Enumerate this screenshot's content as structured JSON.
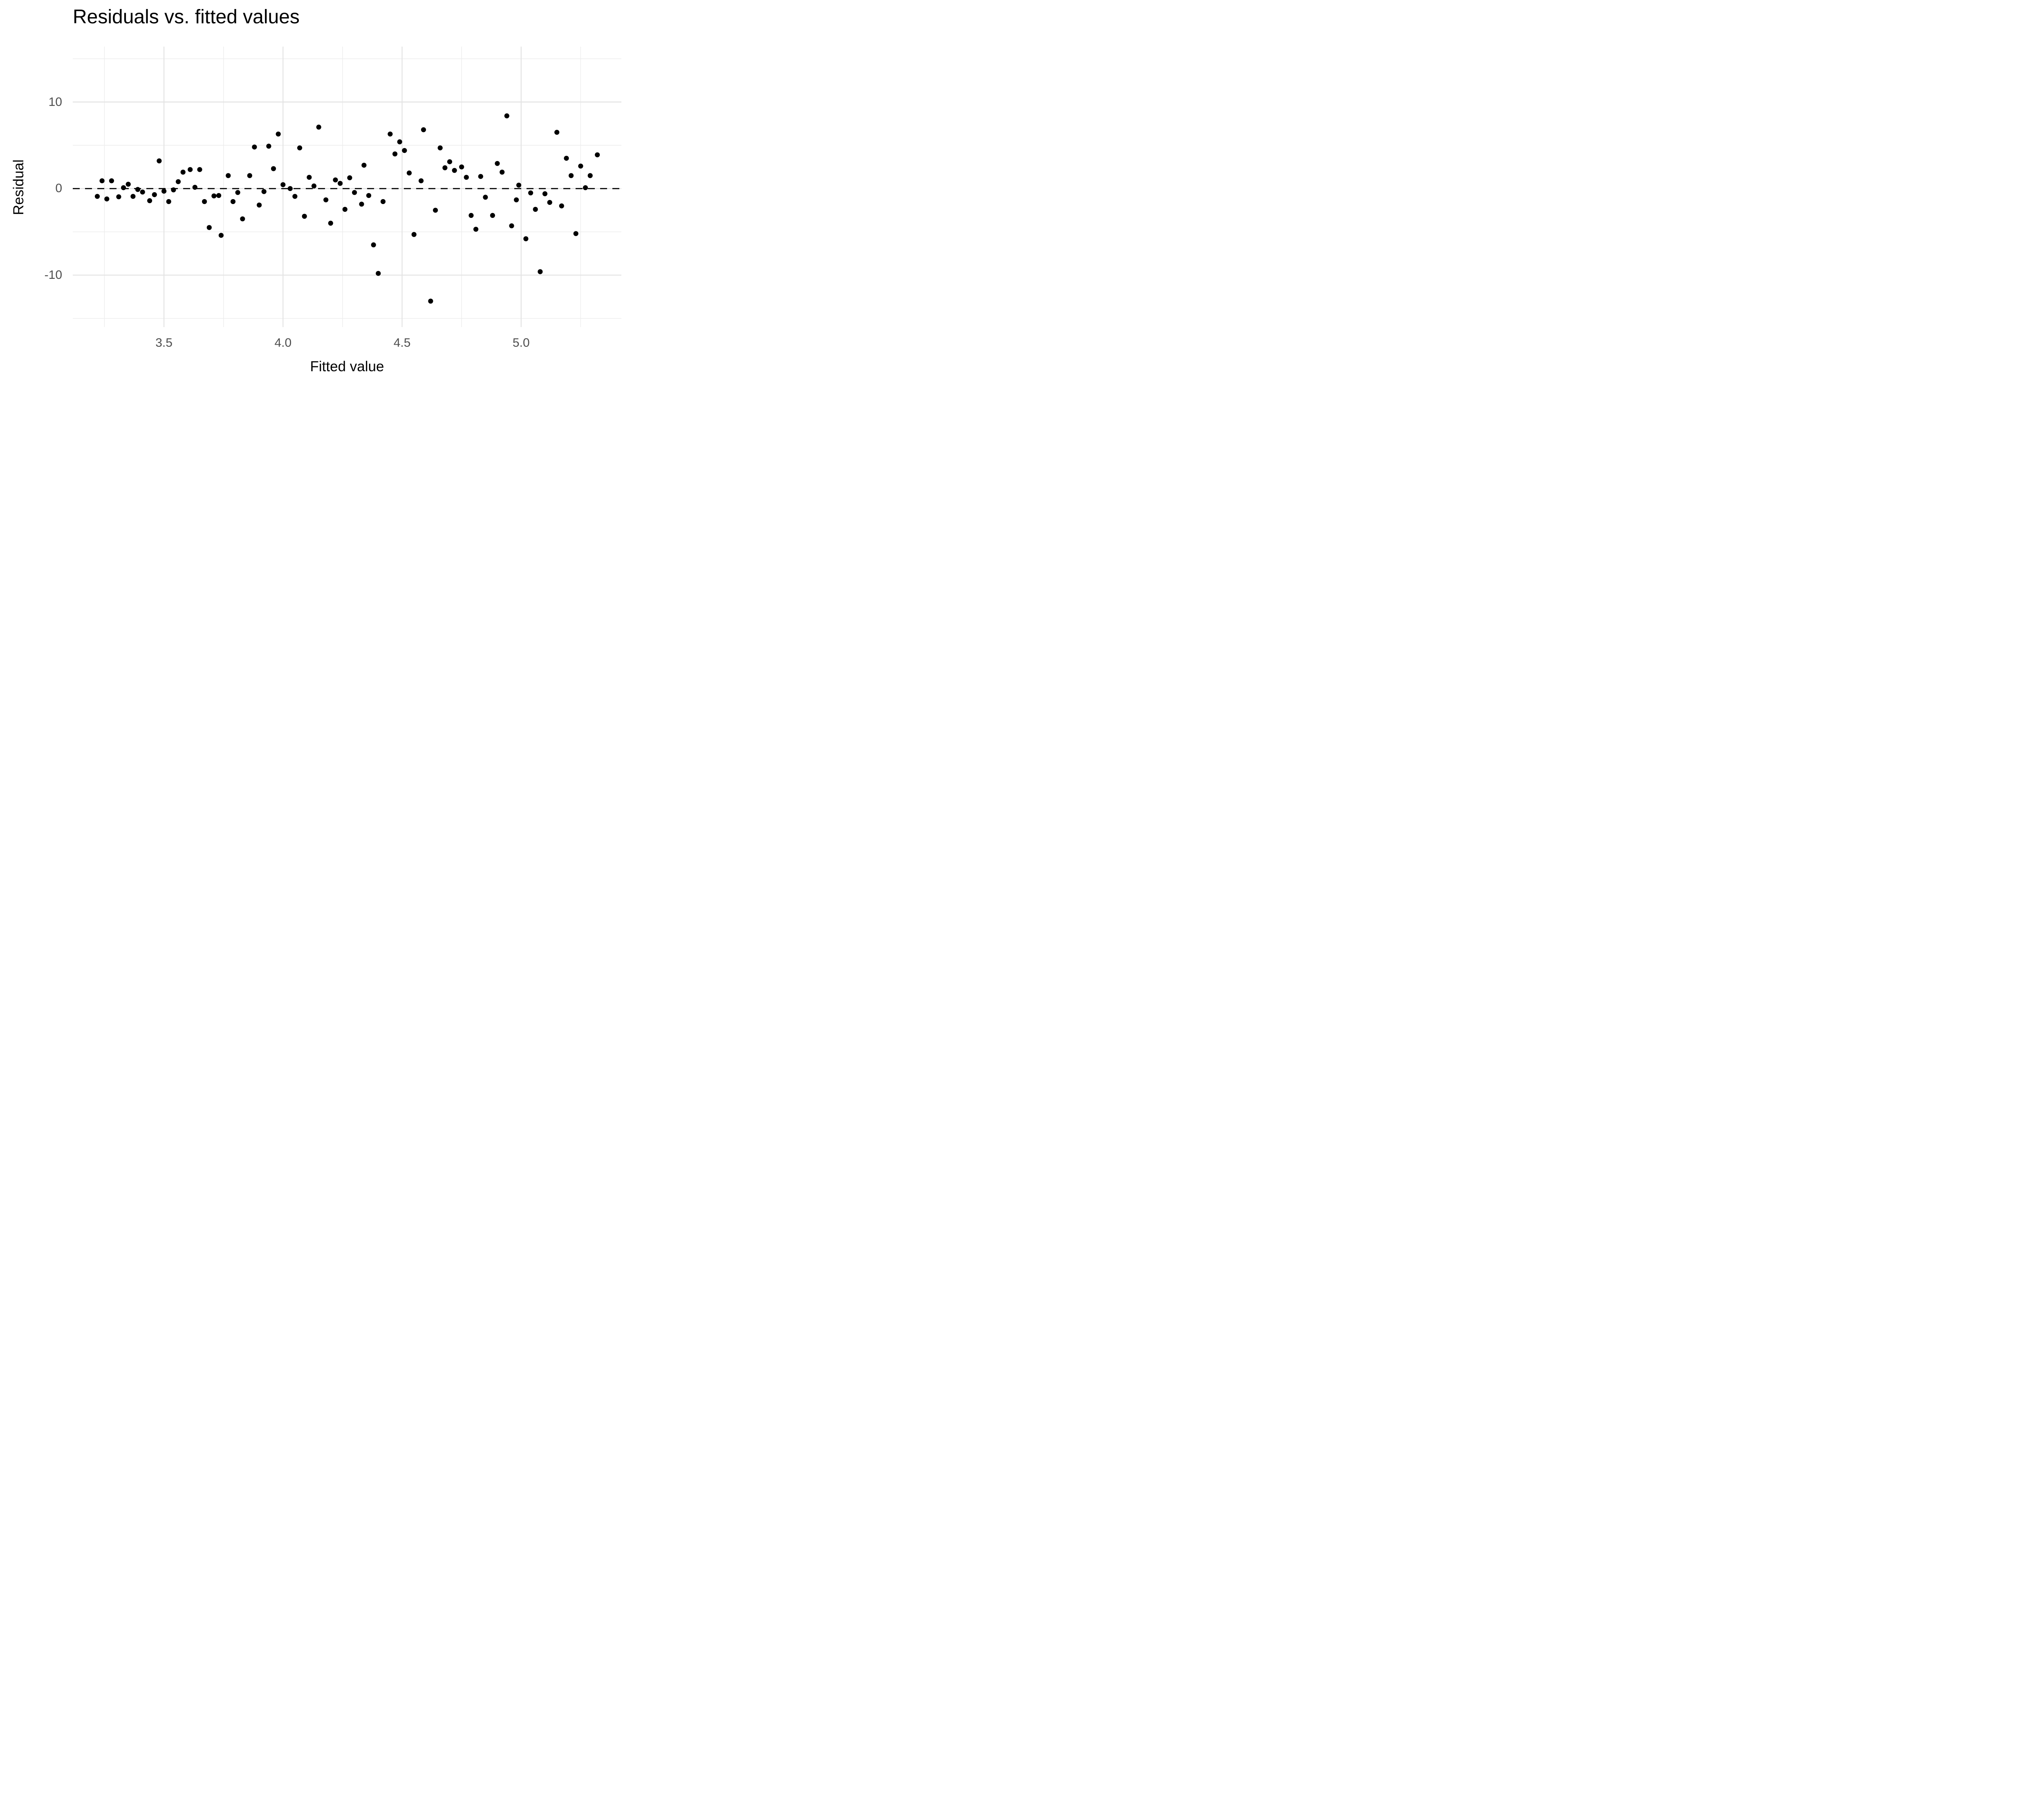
{
  "title": "Residuals vs. fitted values",
  "colors": {
    "background": "#ffffff",
    "point": "#000000",
    "grid_major": "#e4e4e4",
    "grid_minor": "#ececec",
    "zero_line": "#000000",
    "tick_text": "#4d4d4d",
    "title_text": "#000000"
  },
  "chart_data": {
    "type": "scatter",
    "title": "Residuals vs. fitted values",
    "xlabel": "Fitted value",
    "ylabel": "Residual",
    "x_ticks": [
      3.5,
      4.0,
      4.5,
      5.0
    ],
    "x_tick_labels": [
      "3.5",
      "4.0",
      "4.5",
      "5.0"
    ],
    "x_minor_ticks": [
      3.25,
      3.75,
      4.25,
      4.75,
      5.25
    ],
    "y_ticks": [
      10,
      0,
      -10
    ],
    "y_tick_labels": [
      "10",
      "0",
      "-10"
    ],
    "y_minor_ticks": [
      15,
      5,
      -5,
      -15
    ],
    "xlim": [
      3.117,
      5.421
    ],
    "ylim": [
      -16.0,
      16.4
    ],
    "grid": true,
    "legend": "none",
    "zero_line": {
      "y": 0,
      "style": "dashed",
      "color": "#000000"
    },
    "points": [
      [
        3.22,
        -0.9
      ],
      [
        3.24,
        0.9
      ],
      [
        3.26,
        -1.2
      ],
      [
        3.28,
        0.9
      ],
      [
        3.31,
        -0.95
      ],
      [
        3.33,
        0.1
      ],
      [
        3.35,
        0.5
      ],
      [
        3.37,
        -0.9
      ],
      [
        3.39,
        -0.1
      ],
      [
        3.41,
        -0.4
      ],
      [
        3.44,
        -1.4
      ],
      [
        3.46,
        -0.7
      ],
      [
        3.48,
        3.2
      ],
      [
        3.5,
        -0.3
      ],
      [
        3.52,
        -1.5
      ],
      [
        3.54,
        -0.15
      ],
      [
        3.56,
        0.8
      ],
      [
        3.58,
        1.9
      ],
      [
        3.61,
        2.2
      ],
      [
        3.63,
        0.15
      ],
      [
        3.65,
        2.2
      ],
      [
        3.67,
        -1.5
      ],
      [
        3.69,
        -4.5
      ],
      [
        3.71,
        -0.85
      ],
      [
        3.73,
        -0.8
      ],
      [
        3.74,
        -5.4
      ],
      [
        3.77,
        1.5
      ],
      [
        3.79,
        -1.5
      ],
      [
        3.81,
        -0.45
      ],
      [
        3.83,
        -3.5
      ],
      [
        3.86,
        1.5
      ],
      [
        3.88,
        4.8
      ],
      [
        3.9,
        -1.9
      ],
      [
        3.92,
        -0.35
      ],
      [
        3.94,
        4.9
      ],
      [
        3.96,
        2.3
      ],
      [
        3.98,
        6.3
      ],
      [
        4.0,
        0.45
      ],
      [
        4.03,
        0.0
      ],
      [
        4.05,
        -0.9
      ],
      [
        4.07,
        4.7
      ],
      [
        4.09,
        -3.2
      ],
      [
        4.11,
        1.3
      ],
      [
        4.13,
        0.3
      ],
      [
        4.15,
        7.1
      ],
      [
        4.18,
        -1.3
      ],
      [
        4.2,
        -4.0
      ],
      [
        4.22,
        1.0
      ],
      [
        4.24,
        0.6
      ],
      [
        4.26,
        -2.4
      ],
      [
        4.28,
        1.25
      ],
      [
        4.3,
        -0.45
      ],
      [
        4.33,
        -1.8
      ],
      [
        4.34,
        2.7
      ],
      [
        4.36,
        -0.8
      ],
      [
        4.38,
        -6.5
      ],
      [
        4.4,
        -9.8
      ],
      [
        4.42,
        -1.5
      ],
      [
        4.45,
        6.3
      ],
      [
        4.47,
        4.0
      ],
      [
        4.49,
        5.4
      ],
      [
        4.51,
        4.4
      ],
      [
        4.53,
        1.8
      ],
      [
        4.55,
        -5.3
      ],
      [
        4.58,
        0.9
      ],
      [
        4.59,
        6.8
      ],
      [
        4.62,
        -13.0
      ],
      [
        4.64,
        -2.5
      ],
      [
        4.66,
        4.7
      ],
      [
        4.68,
        2.4
      ],
      [
        4.7,
        3.1
      ],
      [
        4.72,
        2.1
      ],
      [
        4.75,
        2.5
      ],
      [
        4.77,
        1.3
      ],
      [
        4.79,
        -3.1
      ],
      [
        4.81,
        -4.7
      ],
      [
        4.83,
        1.4
      ],
      [
        4.85,
        -1.0
      ],
      [
        4.88,
        -3.1
      ],
      [
        4.9,
        2.9
      ],
      [
        4.92,
        1.9
      ],
      [
        4.94,
        8.4
      ],
      [
        4.96,
        -4.3
      ],
      [
        4.98,
        -1.3
      ],
      [
        4.99,
        0.4
      ],
      [
        5.02,
        -5.8
      ],
      [
        5.04,
        -0.5
      ],
      [
        5.06,
        -2.4
      ],
      [
        5.08,
        -9.6
      ],
      [
        5.1,
        -0.6
      ],
      [
        5.12,
        -1.6
      ],
      [
        5.15,
        6.5
      ],
      [
        5.17,
        -2.0
      ],
      [
        5.19,
        3.5
      ],
      [
        5.21,
        1.5
      ],
      [
        5.23,
        -5.2
      ],
      [
        5.25,
        2.6
      ],
      [
        5.27,
        0.1
      ],
      [
        5.29,
        1.5
      ],
      [
        5.32,
        3.9
      ]
    ]
  }
}
